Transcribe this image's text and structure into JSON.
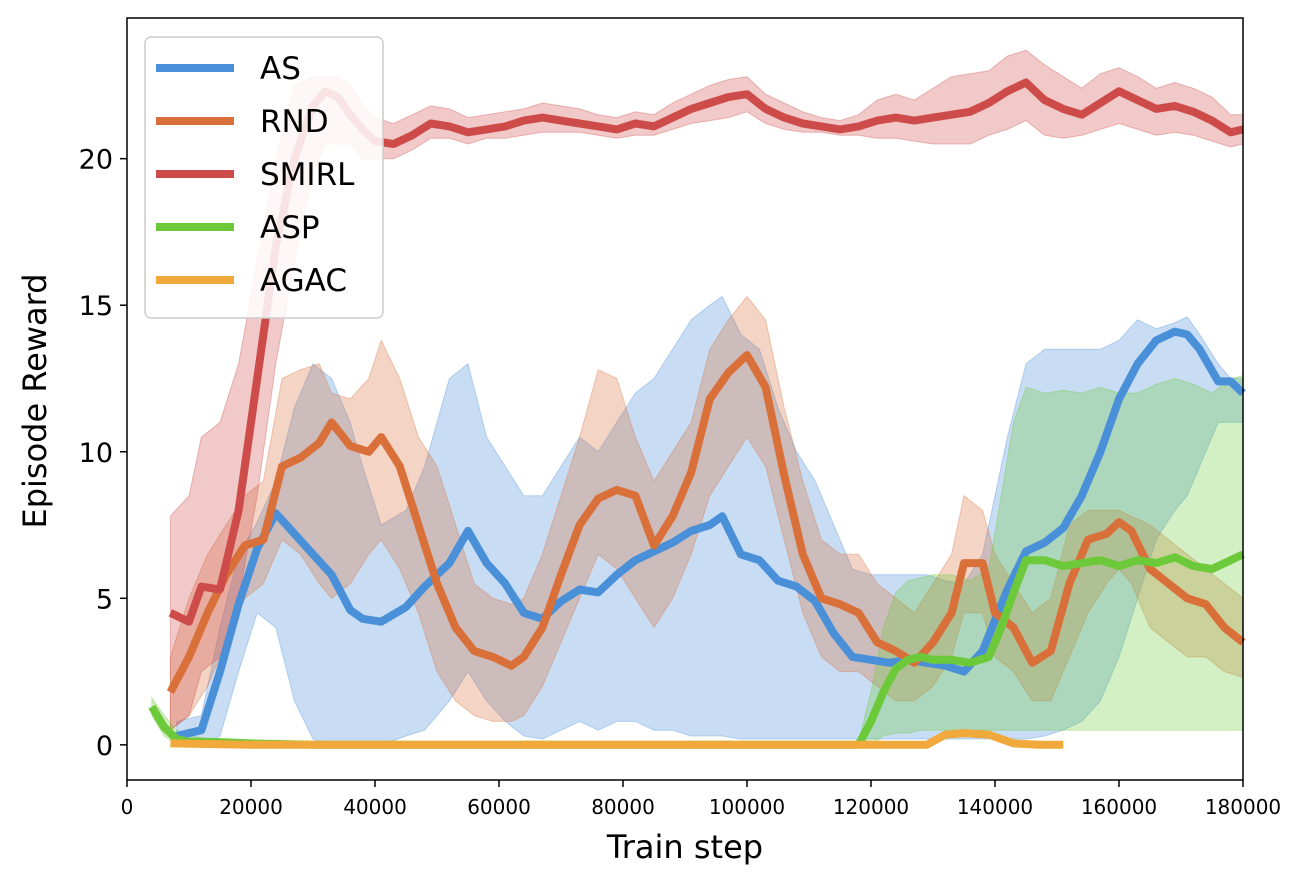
{
  "chart_data": {
    "type": "line",
    "title": "",
    "xlabel": "Train step",
    "ylabel": "Episode Reward",
    "xlim": [
      0,
      180000
    ],
    "ylim": [
      -1.2,
      24.8
    ],
    "xticks": [
      0,
      20000,
      40000,
      60000,
      80000,
      100000,
      120000,
      140000,
      160000,
      180000
    ],
    "yticks": [
      0,
      5,
      10,
      15,
      20
    ],
    "grid": false,
    "legend_position": "top-left",
    "series": [
      {
        "name": "AS",
        "color": "#4a90d9",
        "x": [
          8000,
          12000,
          15000,
          18000,
          21000,
          24000,
          27000,
          30000,
          33000,
          36000,
          38000,
          41000,
          45000,
          48000,
          52000,
          55000,
          58000,
          61000,
          64000,
          67000,
          70000,
          73000,
          76000,
          79000,
          82000,
          85000,
          88000,
          91000,
          94000,
          96000,
          99000,
          102000,
          105000,
          108000,
          111000,
          114000,
          117000,
          120000,
          123000,
          126000,
          129000,
          132000,
          135000,
          138000,
          142000,
          145000,
          148000,
          151000,
          154000,
          157000,
          160000,
          163000,
          166000,
          169000,
          171000,
          173000,
          176000,
          178000,
          180000
        ],
        "values": [
          0.3,
          0.5,
          2.5,
          4.8,
          6.7,
          7.9,
          7.2,
          6.5,
          5.8,
          4.6,
          4.3,
          4.2,
          4.7,
          5.4,
          6.2,
          7.3,
          6.2,
          5.5,
          4.5,
          4.3,
          4.9,
          5.3,
          5.2,
          5.8,
          6.3,
          6.6,
          6.9,
          7.3,
          7.5,
          7.8,
          6.5,
          6.3,
          5.6,
          5.4,
          4.9,
          3.8,
          3.0,
          2.9,
          2.8,
          2.9,
          2.8,
          2.7,
          2.5,
          3.2,
          5.3,
          6.6,
          6.9,
          7.4,
          8.5,
          10.0,
          11.8,
          13.0,
          13.8,
          14.1,
          14.0,
          13.5,
          12.4,
          12.4,
          12.0
        ],
        "lower": [
          0.0,
          0.0,
          0.3,
          2.5,
          4.5,
          4.0,
          1.5,
          0.2,
          0.0,
          0.0,
          0.0,
          0.0,
          0.3,
          0.5,
          1.5,
          2.5,
          1.5,
          0.8,
          0.3,
          0.2,
          0.5,
          0.8,
          0.5,
          0.8,
          0.8,
          0.5,
          0.5,
          0.3,
          0.3,
          0.3,
          0.2,
          0.2,
          0.2,
          0.2,
          0.2,
          0.2,
          0.2,
          0.2,
          0.2,
          0.2,
          0.2,
          0.2,
          0.2,
          0.2,
          0.2,
          0.2,
          0.3,
          0.5,
          0.8,
          1.5,
          3.0,
          5.0,
          7.0,
          8.0,
          8.5,
          9.5,
          11.0,
          11.0,
          11.0
        ],
        "upper": [
          0.8,
          1.0,
          4.0,
          6.5,
          7.6,
          9.0,
          11.5,
          13.0,
          12.5,
          11.0,
          9.5,
          7.5,
          8.0,
          9.5,
          12.5,
          13.0,
          10.5,
          9.5,
          8.5,
          8.5,
          9.5,
          10.5,
          10.0,
          11.0,
          12.0,
          12.5,
          13.5,
          14.5,
          15.0,
          15.3,
          14.0,
          13.5,
          11.5,
          10.0,
          9.0,
          7.5,
          6.0,
          5.8,
          5.8,
          5.8,
          5.8,
          5.6,
          5.5,
          6.5,
          10.5,
          13.0,
          13.5,
          13.5,
          13.5,
          13.5,
          13.8,
          14.5,
          14.2,
          14.4,
          14.6,
          14.0,
          13.0,
          12.5,
          12.5
        ]
      },
      {
        "name": "RND",
        "color": "#d9703a",
        "x": [
          7000,
          10000,
          13000,
          16000,
          19000,
          22000,
          25000,
          28000,
          31000,
          33000,
          36000,
          39000,
          41000,
          44000,
          47000,
          50000,
          53000,
          56000,
          59000,
          62000,
          64000,
          67000,
          70000,
          73000,
          76000,
          79000,
          82000,
          85000,
          88000,
          91000,
          94000,
          97000,
          100000,
          103000,
          106000,
          109000,
          112000,
          115000,
          118000,
          121000,
          124000,
          127000,
          130000,
          133000,
          135000,
          138000,
          140000,
          143000,
          146000,
          149000,
          152000,
          155000,
          158000,
          160000,
          162000,
          165000,
          168000,
          171000,
          174000,
          177000,
          180000
        ],
        "values": [
          1.8,
          3.0,
          4.5,
          5.8,
          6.8,
          7.0,
          9.5,
          9.8,
          10.3,
          11.0,
          10.2,
          10.0,
          10.5,
          9.5,
          7.5,
          5.5,
          4.0,
          3.2,
          3.0,
          2.7,
          3.0,
          4.0,
          5.8,
          7.5,
          8.4,
          8.7,
          8.5,
          6.8,
          7.8,
          9.3,
          11.8,
          12.7,
          13.3,
          12.2,
          9.2,
          6.5,
          5.0,
          4.8,
          4.5,
          3.5,
          3.2,
          2.8,
          3.5,
          4.5,
          6.2,
          6.2,
          4.5,
          4.0,
          2.8,
          3.2,
          5.5,
          7.0,
          7.2,
          7.6,
          7.3,
          6.0,
          5.5,
          5.0,
          4.8,
          4.0,
          3.5
        ],
        "lower": [
          0.5,
          1.0,
          2.0,
          3.5,
          5.0,
          5.5,
          7.0,
          6.5,
          5.5,
          5.0,
          5.5,
          6.5,
          7.0,
          6.0,
          4.5,
          2.5,
          1.5,
          1.0,
          0.8,
          0.8,
          1.0,
          2.0,
          3.5,
          5.0,
          6.5,
          6.0,
          5.0,
          4.0,
          5.0,
          6.5,
          8.5,
          9.5,
          10.5,
          9.5,
          7.0,
          4.5,
          3.0,
          2.5,
          2.5,
          2.0,
          1.5,
          1.5,
          2.0,
          3.0,
          4.5,
          4.5,
          3.0,
          2.5,
          1.5,
          1.5,
          3.0,
          4.5,
          5.5,
          6.0,
          5.5,
          4.0,
          3.5,
          3.0,
          3.0,
          2.5,
          2.3
        ],
        "upper": [
          3.0,
          5.0,
          6.5,
          7.5,
          8.5,
          9.0,
          12.5,
          12.8,
          13.0,
          12.0,
          11.8,
          12.5,
          13.8,
          12.5,
          10.5,
          9.5,
          7.5,
          5.5,
          5.0,
          4.8,
          5.0,
          6.5,
          8.5,
          10.5,
          12.8,
          12.5,
          10.5,
          9.0,
          10.0,
          11.0,
          13.5,
          14.5,
          15.3,
          14.5,
          11.5,
          9.0,
          7.0,
          6.5,
          6.5,
          5.5,
          5.0,
          4.5,
          5.5,
          6.5,
          8.5,
          8.0,
          6.5,
          5.5,
          4.5,
          5.0,
          7.5,
          8.0,
          8.0,
          8.0,
          7.8,
          7.5,
          7.0,
          6.5,
          6.0,
          5.5,
          5.0
        ]
      },
      {
        "name": "SMIRL",
        "color": "#cd4c4a",
        "x": [
          7000,
          10000,
          12000,
          15000,
          18000,
          21000,
          24000,
          27000,
          30000,
          32000,
          34000,
          36000,
          38000,
          40000,
          43000,
          46000,
          49000,
          52000,
          55000,
          58000,
          61000,
          64000,
          67000,
          70000,
          73000,
          76000,
          79000,
          82000,
          85000,
          88000,
          91000,
          94000,
          97000,
          100000,
          103000,
          106000,
          109000,
          112000,
          115000,
          118000,
          121000,
          124000,
          127000,
          130000,
          133000,
          136000,
          139000,
          142000,
          145000,
          148000,
          151000,
          154000,
          157000,
          160000,
          163000,
          166000,
          169000,
          172000,
          175000,
          178000,
          180000
        ],
        "values": [
          4.5,
          4.2,
          5.4,
          5.3,
          8.0,
          12.5,
          17.0,
          20.0,
          21.8,
          22.3,
          22.1,
          21.5,
          21.0,
          20.6,
          20.5,
          20.8,
          21.2,
          21.1,
          20.9,
          21.0,
          21.1,
          21.3,
          21.4,
          21.3,
          21.2,
          21.1,
          21.0,
          21.2,
          21.1,
          21.4,
          21.7,
          21.9,
          22.1,
          22.2,
          21.7,
          21.4,
          21.2,
          21.1,
          21.0,
          21.1,
          21.3,
          21.4,
          21.3,
          21.4,
          21.5,
          21.6,
          21.9,
          22.3,
          22.6,
          22.0,
          21.7,
          21.5,
          21.9,
          22.3,
          22.0,
          21.7,
          21.8,
          21.6,
          21.3,
          20.9,
          21.0
        ],
        "lower": [
          0.5,
          1.0,
          2.5,
          3.0,
          5.0,
          8.5,
          13.0,
          16.5,
          19.5,
          20.5,
          20.5,
          20.5,
          20.0,
          20.0,
          20.0,
          20.3,
          20.7,
          20.7,
          20.5,
          20.7,
          20.7,
          20.8,
          20.9,
          20.9,
          20.9,
          20.8,
          20.7,
          20.8,
          20.8,
          21.0,
          21.2,
          21.3,
          21.4,
          21.6,
          21.2,
          21.0,
          20.9,
          20.9,
          20.8,
          20.8,
          20.7,
          20.7,
          20.6,
          20.5,
          20.5,
          20.5,
          20.8,
          21.0,
          21.3,
          20.8,
          20.7,
          20.8,
          21.0,
          21.2,
          21.0,
          20.8,
          20.9,
          20.8,
          20.6,
          20.4,
          20.5
        ],
        "upper": [
          7.8,
          8.5,
          10.5,
          11.0,
          13.0,
          16.5,
          20.0,
          22.5,
          22.8,
          22.8,
          22.8,
          22.5,
          21.8,
          21.4,
          21.2,
          21.5,
          21.8,
          21.7,
          21.4,
          21.5,
          21.6,
          21.7,
          21.9,
          21.8,
          21.7,
          21.5,
          21.4,
          21.6,
          21.5,
          21.9,
          22.2,
          22.5,
          22.7,
          22.8,
          22.2,
          21.9,
          21.6,
          21.4,
          21.3,
          21.5,
          22.0,
          22.2,
          22.0,
          22.4,
          22.8,
          22.9,
          23.0,
          23.5,
          23.7,
          23.2,
          22.8,
          22.4,
          22.9,
          23.1,
          22.8,
          22.4,
          22.6,
          22.4,
          22.1,
          21.5,
          21.5
        ]
      },
      {
        "name": "ASP",
        "color": "#6cc93a",
        "x": [
          4000,
          6000,
          8000,
          10000,
          14000,
          20000,
          30000,
          40000,
          60000,
          80000,
          100000,
          118000,
          120000,
          122000,
          124000,
          126000,
          128000,
          130000,
          133000,
          136000,
          139000,
          141000,
          143000,
          145000,
          148000,
          151000,
          154000,
          157000,
          160000,
          163000,
          166000,
          169000,
          172000,
          175000,
          178000,
          180000
        ],
        "values": [
          1.3,
          0.6,
          0.2,
          0.1,
          0.1,
          0.05,
          0.0,
          0.0,
          0.0,
          0.0,
          0.0,
          0.0,
          0.8,
          1.8,
          2.6,
          2.9,
          3.0,
          2.9,
          2.9,
          2.8,
          3.0,
          4.0,
          5.2,
          6.3,
          6.3,
          6.1,
          6.2,
          6.3,
          6.1,
          6.3,
          6.2,
          6.4,
          6.1,
          6.0,
          6.3,
          6.5
        ],
        "lower": [
          1.0,
          0.3,
          0.0,
          0.0,
          0.0,
          0.0,
          0.0,
          0.0,
          0.0,
          0.0,
          0.0,
          0.0,
          0.0,
          0.3,
          0.4,
          0.4,
          0.5,
          0.5,
          0.5,
          0.5,
          0.5,
          0.5,
          0.5,
          0.5,
          0.5,
          0.5,
          0.5,
          0.5,
          0.5,
          0.5,
          0.5,
          0.5,
          0.5,
          0.5,
          0.5,
          0.5
        ],
        "upper": [
          1.6,
          1.0,
          0.5,
          0.3,
          0.2,
          0.1,
          0.1,
          0.1,
          0.1,
          0.1,
          0.1,
          0.1,
          1.8,
          4.0,
          5.2,
          5.6,
          5.7,
          5.8,
          5.8,
          5.6,
          6.0,
          8.5,
          11.0,
          12.2,
          12.0,
          12.1,
          12.0,
          12.2,
          12.0,
          12.0,
          12.3,
          12.5,
          12.3,
          12.0,
          12.5,
          12.6
        ]
      },
      {
        "name": "AGAC",
        "color": "#f0a93a",
        "x": [
          7000,
          20000,
          40000,
          60000,
          80000,
          100000,
          120000,
          129000,
          132000,
          135000,
          139000,
          143000,
          147000,
          151000
        ],
        "values": [
          0.05,
          0.0,
          0.0,
          0.0,
          0.0,
          0.0,
          0.0,
          0.0,
          0.35,
          0.4,
          0.35,
          0.05,
          0.0,
          0.0
        ],
        "lower": [],
        "upper": []
      }
    ]
  }
}
